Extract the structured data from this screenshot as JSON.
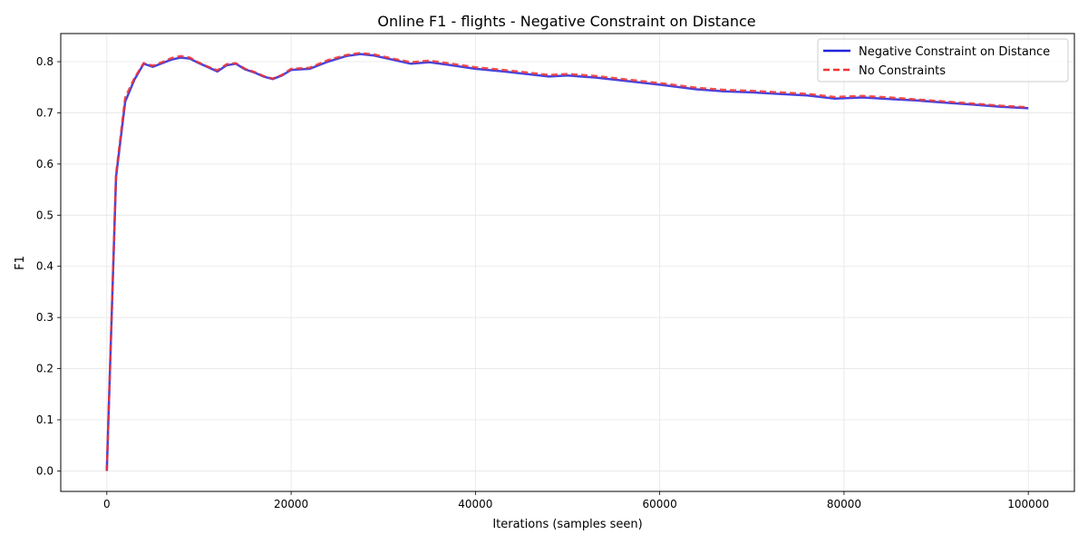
{
  "chart_data": {
    "type": "line",
    "title": "Online F1 - flights - Negative Constraint on Distance",
    "xlabel": "Iterations (samples seen)",
    "ylabel": "F1",
    "xlim": [
      -5000,
      105000
    ],
    "ylim": [
      -0.04,
      0.855
    ],
    "x_ticks": [
      0,
      20000,
      40000,
      60000,
      80000,
      100000
    ],
    "x_tick_labels": [
      "0",
      "20000",
      "40000",
      "60000",
      "80000",
      "100000"
    ],
    "y_ticks": [
      0.0,
      0.1,
      0.2,
      0.3,
      0.4,
      0.5,
      0.6,
      0.7,
      0.8
    ],
    "y_tick_labels": [
      "0.0",
      "0.1",
      "0.2",
      "0.3",
      "0.4",
      "0.5",
      "0.6",
      "0.7",
      "0.8"
    ],
    "grid": true,
    "legend_position": "top-right",
    "series": [
      {
        "name": "Negative Constraint on Distance",
        "color": "#2222dd",
        "style": "solid",
        "x": [
          0,
          1000,
          2000,
          3000,
          4000,
          5000,
          6000,
          7000,
          8000,
          9000,
          10000,
          11000,
          12000,
          13000,
          14000,
          15000,
          16000,
          17000,
          18000,
          19000,
          20000,
          22000,
          24000,
          26000,
          27500,
          29000,
          31000,
          33000,
          35000,
          37000,
          40000,
          43000,
          46000,
          48000,
          50000,
          53000,
          56000,
          60000,
          64000,
          67000,
          70000,
          73000,
          76000,
          79000,
          82000,
          85000,
          88000,
          91000,
          94000,
          97000,
          100000
        ],
        "y": [
          0.0,
          0.575,
          0.722,
          0.765,
          0.796,
          0.79,
          0.797,
          0.804,
          0.808,
          0.806,
          0.797,
          0.789,
          0.781,
          0.793,
          0.796,
          0.785,
          0.779,
          0.771,
          0.766,
          0.773,
          0.784,
          0.786,
          0.8,
          0.811,
          0.815,
          0.812,
          0.804,
          0.796,
          0.799,
          0.794,
          0.786,
          0.781,
          0.775,
          0.771,
          0.773,
          0.769,
          0.763,
          0.755,
          0.746,
          0.742,
          0.74,
          0.737,
          0.734,
          0.728,
          0.73,
          0.727,
          0.724,
          0.72,
          0.716,
          0.712,
          0.709
        ]
      },
      {
        "name": "No Constraints",
        "color": "#ee3333",
        "style": "dashed",
        "x": [
          0,
          1000,
          2000,
          3000,
          4000,
          5000,
          6000,
          7000,
          8000,
          9000,
          10000,
          11000,
          12000,
          13000,
          14000,
          15000,
          16000,
          17000,
          18000,
          19000,
          20000,
          22000,
          24000,
          26000,
          27500,
          29000,
          31000,
          33000,
          35000,
          37000,
          40000,
          43000,
          46000,
          48000,
          50000,
          53000,
          56000,
          60000,
          64000,
          67000,
          70000,
          73000,
          76000,
          79000,
          82000,
          85000,
          88000,
          91000,
          94000,
          97000,
          100000
        ],
        "y": [
          0.0,
          0.58,
          0.73,
          0.768,
          0.797,
          0.792,
          0.799,
          0.807,
          0.811,
          0.808,
          0.798,
          0.79,
          0.783,
          0.795,
          0.797,
          0.786,
          0.78,
          0.772,
          0.767,
          0.774,
          0.786,
          0.788,
          0.803,
          0.813,
          0.817,
          0.814,
          0.806,
          0.799,
          0.802,
          0.797,
          0.789,
          0.784,
          0.778,
          0.774,
          0.776,
          0.772,
          0.766,
          0.758,
          0.749,
          0.745,
          0.743,
          0.74,
          0.737,
          0.731,
          0.733,
          0.73,
          0.726,
          0.722,
          0.718,
          0.714,
          0.711
        ]
      }
    ]
  }
}
